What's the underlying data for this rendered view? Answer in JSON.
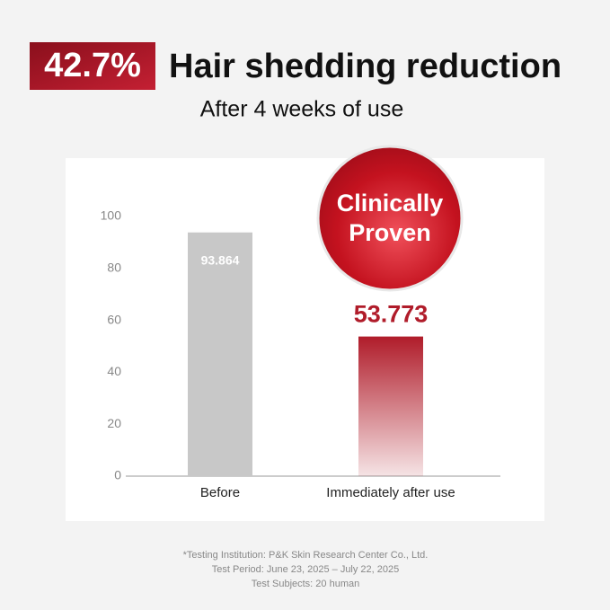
{
  "chart_data": {
    "type": "bar",
    "highlight": "42.7%",
    "title": "Hair shedding reduction",
    "subtitle": "After 4 weeks of use",
    "badge": [
      "Clinically",
      "Proven"
    ],
    "categories": [
      "Before",
      "Immediately after use"
    ],
    "values": [
      93.864,
      53.773
    ],
    "colors": [
      "#c8c8c8",
      "#b01c2a"
    ],
    "ylim": [
      0,
      100
    ],
    "yticks": [
      0,
      20,
      40,
      60,
      80,
      100
    ],
    "footnotes": [
      "*Testing Institution: P&K Skin Research Center Co., Ltd.",
      "Test Period: June 23, 2025 – July 22, 2025",
      "Test Subjects: 20 human"
    ]
  }
}
